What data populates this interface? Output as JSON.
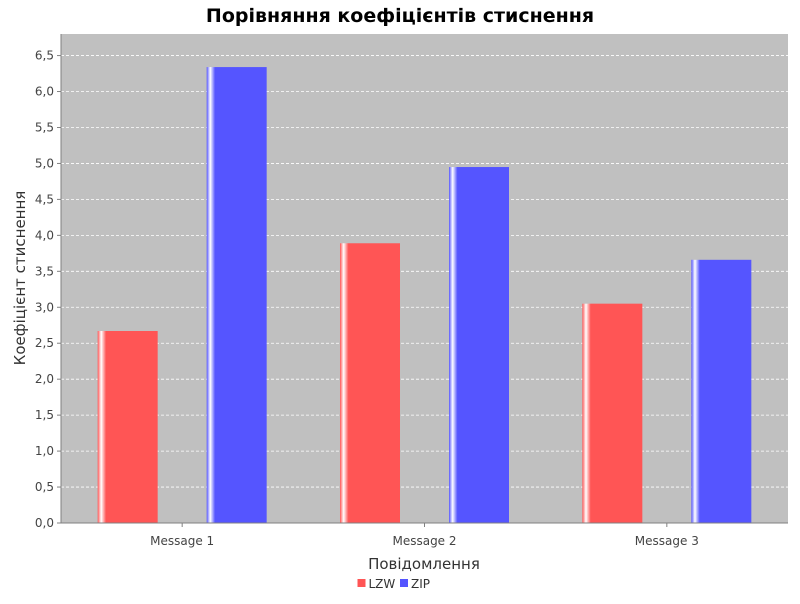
{
  "chart_data": {
    "type": "bar",
    "title": "Порівняння коефіцієнтів стиснення",
    "xlabel": "Повідомлення",
    "ylabel": "Коефіцієнт стиснення",
    "categories": [
      "Message 1",
      "Message 2",
      "Message 3"
    ],
    "series": [
      {
        "name": "LZW",
        "values": [
          2.67,
          3.89,
          3.05
        ],
        "color": "#ff5555"
      },
      {
        "name": "ZIP",
        "values": [
          6.34,
          4.95,
          3.66
        ],
        "color": "#5555ff"
      }
    ],
    "ylim": [
      0,
      6.8
    ],
    "yticks": [
      0,
      0.5,
      1,
      1.5,
      2,
      2.5,
      3,
      3.5,
      4,
      4.5,
      5,
      5.5,
      6,
      6.5
    ],
    "ytick_labels": [
      "0,0",
      "0,5",
      "1,0",
      "1,5",
      "2,0",
      "2,5",
      "3,0",
      "3,5",
      "4,0",
      "4,5",
      "5,0",
      "5,5",
      "6,0",
      "6,5"
    ],
    "grid": true,
    "plot_background": "#c0c0c0",
    "legend_position": "bottom"
  }
}
